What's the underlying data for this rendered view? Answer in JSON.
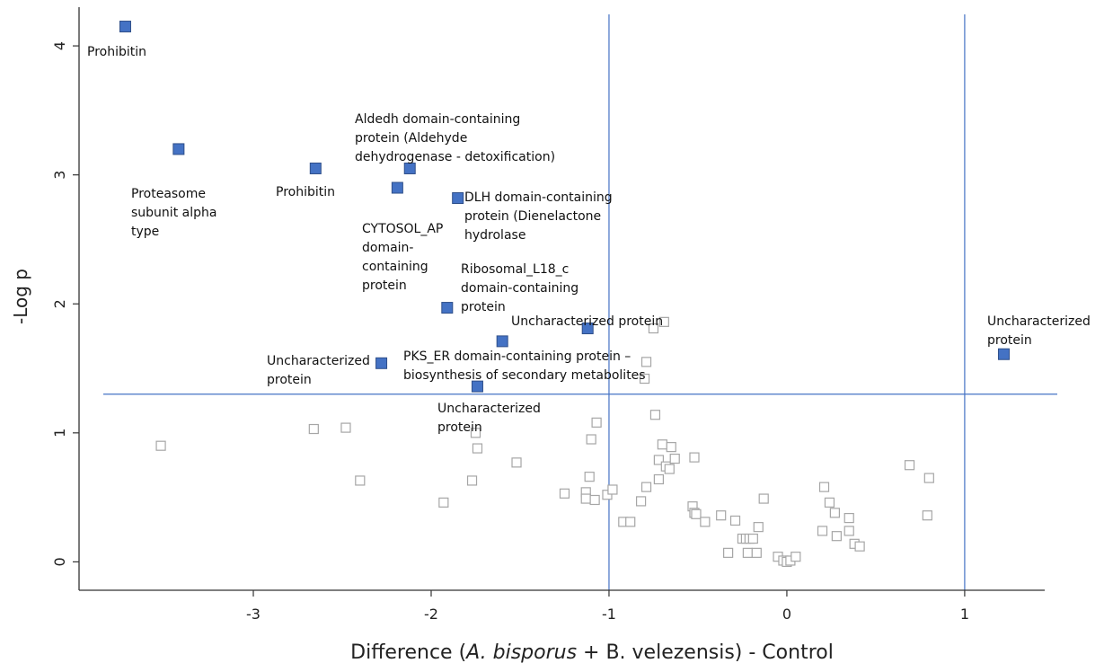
{
  "chart_data": {
    "type": "scatter",
    "title": "",
    "xlabel": {
      "prefix": "Difference (",
      "italic": "A. bisporus",
      "suffix": " + B. velezensis) - Control"
    },
    "ylabel": "-Log p",
    "xlim": [
      -3.98,
      1.45
    ],
    "ylim": [
      -0.22,
      4.3
    ],
    "xticks": [
      -3,
      -2,
      -1,
      0,
      1
    ],
    "yticks": [
      0,
      1,
      2,
      3,
      4
    ],
    "threshold_lines": {
      "x": [
        -1,
        1
      ],
      "y": 1.3
    },
    "colors": {
      "significant": "#4472C4",
      "significant_edge": "#2f4f8a",
      "nonsignificant": "#a6a6a6",
      "threshold": "#4472C4",
      "axis": "#333333"
    },
    "significant": [
      {
        "x": -3.72,
        "y": 4.15,
        "label": [
          "Prohibitin"
        ]
      },
      {
        "x": -3.42,
        "y": 3.2,
        "label": [
          "Proteasome",
          "subunit alpha",
          "type"
        ]
      },
      {
        "x": -2.65,
        "y": 3.05,
        "label": [
          "Prohibitin"
        ]
      },
      {
        "x": -2.12,
        "y": 3.05,
        "label": [
          "Aldedh domain-containing",
          "protein (Aldehyde",
          "dehydrogenase - detoxification)"
        ]
      },
      {
        "x": -2.19,
        "y": 2.9,
        "label": [
          "CYTOSOL_AP",
          "domain-",
          "containing",
          "protein"
        ]
      },
      {
        "x": -1.85,
        "y": 2.82,
        "label": [
          "DLH domain-containing",
          "protein (Dienelactone",
          "hydrolase"
        ]
      },
      {
        "x": -1.91,
        "y": 1.97,
        "label": [
          "Ribosomal_L18_c",
          "domain-containing",
          "protein"
        ]
      },
      {
        "x": -1.12,
        "y": 1.81,
        "label": [
          "Uncharacterized protein"
        ]
      },
      {
        "x": -1.6,
        "y": 1.71,
        "label": [
          "PKS_ER domain-containing protein –",
          "biosynthesis of secondary metabolites"
        ]
      },
      {
        "x": -2.28,
        "y": 1.54,
        "label": [
          "Uncharacterized",
          "protein"
        ]
      },
      {
        "x": -1.74,
        "y": 1.36,
        "label": [
          "Uncharacterized",
          "protein"
        ]
      },
      {
        "x": 1.22,
        "y": 1.61,
        "label": [
          "Uncharacterized",
          "protein"
        ]
      }
    ],
    "nonsignificant": [
      [
        -0.75,
        1.81
      ],
      [
        -0.69,
        1.86
      ],
      [
        -0.79,
        1.55
      ],
      [
        -0.8,
        1.42
      ],
      [
        -3.52,
        0.9
      ],
      [
        -2.66,
        1.03
      ],
      [
        -2.48,
        1.04
      ],
      [
        -2.4,
        0.63
      ],
      [
        -1.93,
        0.46
      ],
      [
        -1.75,
        1.0
      ],
      [
        -1.74,
        0.88
      ],
      [
        -1.77,
        0.63
      ],
      [
        -1.52,
        0.77
      ],
      [
        -1.25,
        0.53
      ],
      [
        -1.13,
        0.54
      ],
      [
        -1.13,
        0.49
      ],
      [
        -1.11,
        0.66
      ],
      [
        -1.1,
        0.95
      ],
      [
        -1.07,
        1.08
      ],
      [
        -1.08,
        0.48
      ],
      [
        -1.01,
        0.52
      ],
      [
        -0.98,
        0.56
      ],
      [
        -0.92,
        0.31
      ],
      [
        -0.88,
        0.31
      ],
      [
        -0.82,
        0.47
      ],
      [
        -0.79,
        0.58
      ],
      [
        -0.74,
        1.14
      ],
      [
        -0.72,
        0.64
      ],
      [
        -0.72,
        0.79
      ],
      [
        -0.7,
        0.91
      ],
      [
        -0.68,
        0.74
      ],
      [
        -0.66,
        0.72
      ],
      [
        -0.65,
        0.89
      ],
      [
        -0.63,
        0.8
      ],
      [
        -0.52,
        0.81
      ],
      [
        -0.53,
        0.43
      ],
      [
        -0.52,
        0.38
      ],
      [
        -0.51,
        0.37
      ],
      [
        -0.46,
        0.31
      ],
      [
        -0.37,
        0.36
      ],
      [
        -0.33,
        0.07
      ],
      [
        -0.29,
        0.32
      ],
      [
        -0.25,
        0.18
      ],
      [
        -0.23,
        0.18
      ],
      [
        -0.22,
        0.07
      ],
      [
        -0.21,
        0.18
      ],
      [
        -0.19,
        0.18
      ],
      [
        -0.17,
        0.07
      ],
      [
        -0.16,
        0.27
      ],
      [
        -0.13,
        0.49
      ],
      [
        -0.05,
        0.04
      ],
      [
        -0.02,
        0.01
      ],
      [
        0.0,
        0.0
      ],
      [
        0.02,
        0.01
      ],
      [
        0.05,
        0.04
      ],
      [
        0.2,
        0.24
      ],
      [
        0.21,
        0.58
      ],
      [
        0.24,
        0.46
      ],
      [
        0.27,
        0.38
      ],
      [
        0.28,
        0.2
      ],
      [
        0.35,
        0.34
      ],
      [
        0.35,
        0.24
      ],
      [
        0.38,
        0.14
      ],
      [
        0.41,
        0.12
      ],
      [
        0.69,
        0.75
      ],
      [
        0.79,
        0.36
      ],
      [
        0.8,
        0.65
      ]
    ]
  }
}
